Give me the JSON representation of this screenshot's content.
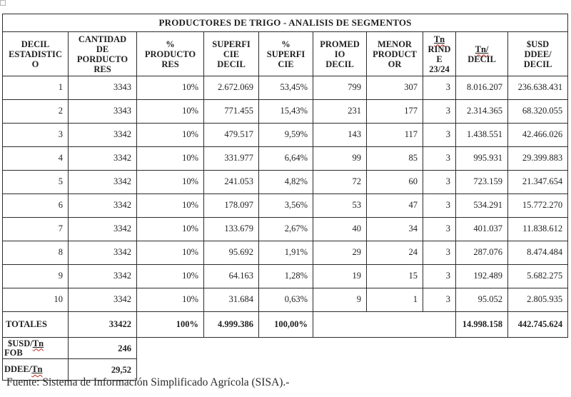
{
  "title": "PRODUCTORES DE TRIGO - ANALISIS DE SEGMENTOS",
  "table": {
    "column_keys": [
      "decil_estadistico",
      "cantidad_productores",
      "pct_productores",
      "superficie_decil",
      "pct_superficie",
      "promedio_decil",
      "menor_productor",
      "tn_rinde",
      "tn_decil",
      "usd_ddee_decil"
    ],
    "headers": [
      {
        "text": "DECIL\nESTADISTIC\nO"
      },
      {
        "text": "CANTIDAD\nDE\nPORDUCTO\nRES"
      },
      {
        "text": "%\nPRODUCTO\nRES"
      },
      {
        "text": "SUPERFI\nCIE\nDECIL"
      },
      {
        "text": "%\nSUPERFI\nCIE"
      },
      {
        "text": "PROMED\nIO\nDECIL"
      },
      {
        "text": "MENOR\nPRODUCT\nOR"
      },
      {
        "tn": "Tn",
        "rest": "RIND\nE\n23/24"
      },
      {
        "tn": "Tn/",
        "rest": "DECIL"
      },
      {
        "text": "$USD\nDDEE/\nDECIL"
      }
    ],
    "rows": [
      [
        "1",
        "3343",
        "10%",
        "2.672.069",
        "53,45%",
        "799",
        "307",
        "3",
        "8.016.207",
        "236.638.431"
      ],
      [
        "2",
        "3343",
        "10%",
        "771.455",
        "15,43%",
        "231",
        "177",
        "3",
        "2.314.365",
        "68.320.055"
      ],
      [
        "3",
        "3342",
        "10%",
        "479.517",
        "9,59%",
        "143",
        "117",
        "3",
        "1.438.551",
        "42.466.026"
      ],
      [
        "4",
        "3342",
        "10%",
        "331.977",
        "6,64%",
        "99",
        "85",
        "3",
        "995.931",
        "29.399.883"
      ],
      [
        "5",
        "3342",
        "10%",
        "241.053",
        "4,82%",
        "72",
        "60",
        "3",
        "723.159",
        "21.347.654"
      ],
      [
        "6",
        "3342",
        "10%",
        "178.097",
        "3,56%",
        "53",
        "47",
        "3",
        "534.291",
        "15.772.270"
      ],
      [
        "7",
        "3342",
        "10%",
        "133.679",
        "2,67%",
        "40",
        "34",
        "3",
        "401.037",
        "11.838.612"
      ],
      [
        "8",
        "3342",
        "10%",
        "95.692",
        "1,91%",
        "29",
        "24",
        "3",
        "287.076",
        "8.474.484"
      ],
      [
        "9",
        "3342",
        "10%",
        "64.163",
        "1,28%",
        "19",
        "15",
        "3",
        "192.489",
        "5.682.275"
      ],
      [
        "10",
        "3342",
        "10%",
        "31.684",
        "0,63%",
        "9",
        "1",
        "3",
        "95.052",
        "2.805.935"
      ]
    ],
    "totals": {
      "label": "TOTALES",
      "cantidad": "33422",
      "pct_productores": "100%",
      "superficie": "4.999.386",
      "pct_superficie": "100,00%",
      "tn_decil": "14.998.158",
      "usd_ddee": "442.745.624"
    },
    "fob_row": {
      "label_pre": "$USD/",
      "label_tn": "Tn",
      "label_line2": "FOB",
      "value": "246"
    },
    "ddee_row": {
      "label_pre": "DDEE/",
      "label_tn": "Tn",
      "value": "29,52"
    }
  },
  "footer": {
    "source": "Fuente: Sistema de Información Simplificado Agrícola (SISA).-"
  },
  "colors": {
    "text": "#1f1f1f",
    "border": "#2c2c2c",
    "squiggle": "#c2261d",
    "background": "#ffffff"
  }
}
